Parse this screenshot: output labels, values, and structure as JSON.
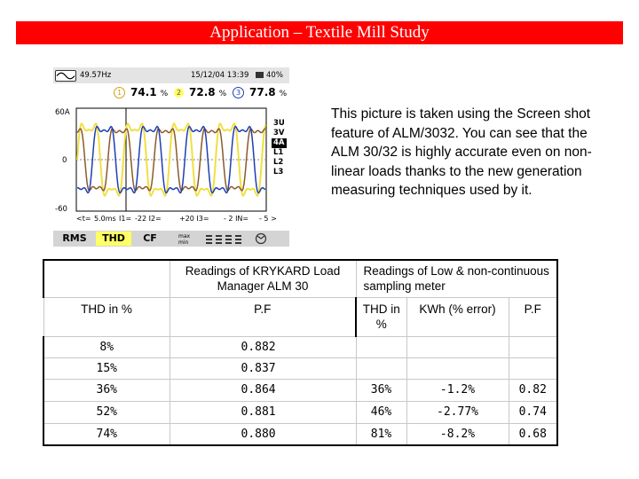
{
  "title": "Application – Textile Mill Study",
  "analyzer": {
    "frequency": "49.57Hz",
    "datetime": "15/12/04  13:39",
    "battery": "40%",
    "channels": [
      {
        "num": "1",
        "value": "74.1",
        "unit": "%",
        "color": "#d4a017",
        "fill": "#ffffff"
      },
      {
        "num": "2",
        "value": "72.8",
        "unit": "%",
        "color": "#555555",
        "fill": "#ffff66"
      },
      {
        "num": "3",
        "value": "77.8",
        "unit": "%",
        "color": "#1e3fb4",
        "fill": "#ffffff"
      }
    ],
    "y_top": "60A",
    "y_zero": "0",
    "y_bottom": "-60",
    "side_labels": [
      "3U",
      "3V",
      "4A",
      "L1",
      "L2",
      "L3"
    ],
    "selected_side": "4A",
    "bottom": {
      "t": "<t=",
      "time": "5.0ms",
      "i1": "I1=",
      "i2": "-22  I2=",
      "i3": "+20  I3=",
      "in": "- 2  IN=",
      "last": "- 5 >"
    },
    "modes": [
      "RMS",
      "THD",
      "CF"
    ],
    "active_mode": "THD"
  },
  "description": "This picture is taken using the Screen shot feature of ALM/3032. You can see that the ALM 30/32 is highly accurate even on non-linear loads thanks to the new generation measuring techniques used by it.",
  "table": {
    "header_kry": "Readings of KRYKARD Load Manager ALM 30",
    "header_low": "Readings of Low & non-continuous sampling  meter",
    "col_thd": "THD in %",
    "col_pf": "P.F",
    "col_thd2": "THD in %",
    "col_kwh": "KWh (% error)",
    "col_pf2": "P.F",
    "rows": [
      {
        "thd": "8%",
        "pf": "0.882",
        "thd2": "",
        "kwh": "",
        "pf2": ""
      },
      {
        "thd": "15%",
        "pf": "0.837",
        "thd2": "",
        "kwh": "",
        "pf2": ""
      },
      {
        "thd": "36%",
        "pf": "0.864",
        "thd2": "36%",
        "kwh": "-1.2%",
        "pf2": "0.82"
      },
      {
        "thd": "52%",
        "pf": "0.881",
        "thd2": "46%",
        "kwh": "-2.77%",
        "pf2": "0.74"
      },
      {
        "thd": "74%",
        "pf": "0.880",
        "thd2": "81%",
        "kwh": "-8.2%",
        "pf2": "0.68"
      }
    ]
  }
}
